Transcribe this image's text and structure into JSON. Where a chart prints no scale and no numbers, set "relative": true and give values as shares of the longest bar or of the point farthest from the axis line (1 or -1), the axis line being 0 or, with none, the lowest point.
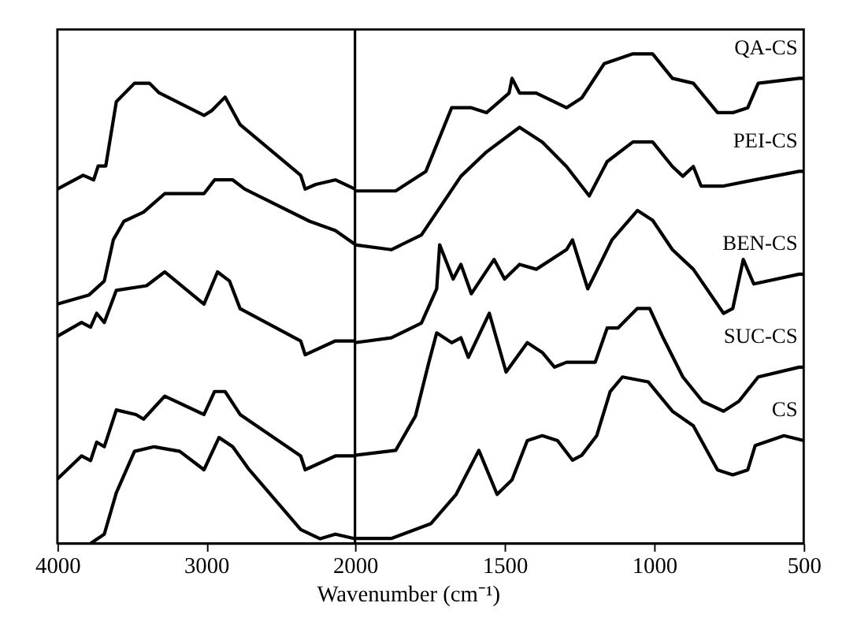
{
  "chart_data": [
    {
      "type": "line",
      "relative": true,
      "xlabel": "Wavenumber (cm⁻¹)",
      "xlim": [
        4000,
        2000
      ],
      "xticks": [
        4000,
        3000,
        2000
      ],
      "tick_labels": "x",
      "grid": false,
      "legend": false,
      "marker": "none",
      "line_style": "solid",
      "series": [
        {
          "color": "#000000",
          "x": [
            4000,
            3827,
            3756,
            3726,
            3675,
            3604,
            3482,
            3381,
            3320,
            3015,
            2965,
            2873,
            2772,
            2365,
            2335,
            2264,
            2132,
            2000
          ],
          "values": [
            0.77,
            0.8,
            0.79,
            0.82,
            0.82,
            0.96,
            1.0,
            1.0,
            0.98,
            0.93,
            0.94,
            0.97,
            0.91,
            0.8,
            0.77,
            0.78,
            0.79,
            0.77
          ]
        },
        {
          "color": "#000000",
          "x": [
            4000,
            3787,
            3685,
            3624,
            3553,
            3421,
            3279,
            3015,
            2944,
            2822,
            2741,
            2305,
            2132,
            2000
          ],
          "values": [
            0.52,
            0.54,
            0.57,
            0.66,
            0.7,
            0.72,
            0.76,
            0.76,
            0.79,
            0.79,
            0.77,
            0.7,
            0.68,
            0.65
          ]
        },
        {
          "color": "#000000",
          "x": [
            4000,
            3838,
            3777,
            3736,
            3685,
            3604,
            3401,
            3279,
            3015,
            2924,
            2843,
            2772,
            2365,
            2335,
            2132,
            2000
          ],
          "values": [
            0.45,
            0.48,
            0.47,
            0.5,
            0.48,
            0.55,
            0.56,
            0.59,
            0.52,
            0.59,
            0.57,
            0.51,
            0.44,
            0.41,
            0.44,
            0.44
          ]
        },
        {
          "color": "#000000",
          "x": [
            4000,
            3838,
            3777,
            3736,
            3685,
            3604,
            3472,
            3421,
            3279,
            3015,
            2944,
            2873,
            2772,
            2365,
            2335,
            2132,
            2000
          ],
          "values": [
            0.14,
            0.19,
            0.18,
            0.22,
            0.21,
            0.29,
            0.28,
            0.27,
            0.32,
            0.28,
            0.33,
            0.33,
            0.28,
            0.19,
            0.16,
            0.19,
            0.19
          ]
        },
        {
          "color": "#000000",
          "x": [
            3777,
            3685,
            3604,
            3482,
            3350,
            3178,
            3015,
            2914,
            2822,
            2711,
            2365,
            2234,
            2132,
            2000
          ],
          "values": [
            0.0,
            0.02,
            0.11,
            0.2,
            0.21,
            0.2,
            0.16,
            0.23,
            0.21,
            0.16,
            0.03,
            0.01,
            0.02,
            0.01
          ]
        }
      ]
    },
    {
      "type": "line",
      "relative": true,
      "xlim": [
        2000,
        500
      ],
      "xticks": [
        1500,
        1000,
        500
      ],
      "tick_labels": "x",
      "grid": false,
      "legend": false,
      "marker": "none",
      "line_style": "solid",
      "series": [
        {
          "name": "QA-CS",
          "color": "#000000",
          "x": [
            2000,
            1864,
            1763,
            1677,
            1611,
            1560,
            1485,
            1475,
            1450,
            1394,
            1293,
            1242,
            1167,
            1071,
            1005,
            939,
            869,
            788,
            737,
            687,
            652,
            515,
            500
          ],
          "values": [
            0.72,
            0.72,
            0.76,
            0.89,
            0.89,
            0.88,
            0.92,
            0.95,
            0.92,
            0.92,
            0.89,
            0.91,
            0.98,
            1.0,
            1.0,
            0.95,
            0.94,
            0.88,
            0.88,
            0.89,
            0.94,
            0.95,
            0.95
          ]
        },
        {
          "name": "PEI-CS",
          "color": "#000000",
          "x": [
            2000,
            1879,
            1778,
            1646,
            1560,
            1450,
            1374,
            1293,
            1217,
            1157,
            1071,
            1005,
            939,
            904,
            869,
            843,
            768,
            687,
            515,
            500
          ],
          "values": [
            0.61,
            0.6,
            0.63,
            0.75,
            0.8,
            0.85,
            0.82,
            0.77,
            0.71,
            0.78,
            0.82,
            0.82,
            0.77,
            0.75,
            0.77,
            0.73,
            0.73,
            0.74,
            0.76,
            0.76
          ]
        },
        {
          "name": "BEN-CS",
          "color": "#000000",
          "x": [
            2000,
            1879,
            1778,
            1727,
            1717,
            1672,
            1646,
            1611,
            1535,
            1500,
            1450,
            1394,
            1293,
            1273,
            1222,
            1141,
            1056,
            1005,
            939,
            869,
            768,
            737,
            702,
            667,
            515,
            500
          ],
          "values": [
            0.41,
            0.42,
            0.45,
            0.52,
            0.61,
            0.54,
            0.57,
            0.51,
            0.58,
            0.54,
            0.57,
            0.56,
            0.6,
            0.62,
            0.52,
            0.62,
            0.68,
            0.66,
            0.6,
            0.56,
            0.47,
            0.48,
            0.58,
            0.53,
            0.55,
            0.55
          ]
        },
        {
          "name": "SUC-CS",
          "color": "#000000",
          "x": [
            2000,
            1864,
            1798,
            1753,
            1727,
            1677,
            1646,
            1621,
            1551,
            1495,
            1424,
            1374,
            1333,
            1293,
            1197,
            1157,
            1121,
            1056,
            1015,
            970,
            904,
            838,
            768,
            717,
            652,
            515,
            500
          ],
          "values": [
            0.18,
            0.19,
            0.26,
            0.37,
            0.43,
            0.41,
            0.42,
            0.38,
            0.47,
            0.35,
            0.41,
            0.39,
            0.36,
            0.37,
            0.37,
            0.44,
            0.44,
            0.48,
            0.48,
            0.42,
            0.34,
            0.29,
            0.27,
            0.29,
            0.34,
            0.36,
            0.36
          ]
        },
        {
          "name": "CS",
          "color": "#000000",
          "x": [
            2000,
            1879,
            1747,
            1662,
            1586,
            1525,
            1475,
            1424,
            1374,
            1323,
            1273,
            1242,
            1192,
            1147,
            1106,
            1020,
            939,
            869,
            788,
            737,
            687,
            662,
            566,
            500
          ],
          "values": [
            0.01,
            0.01,
            0.04,
            0.1,
            0.19,
            0.1,
            0.13,
            0.21,
            0.22,
            0.21,
            0.17,
            0.18,
            0.22,
            0.31,
            0.34,
            0.33,
            0.27,
            0.24,
            0.15,
            0.14,
            0.15,
            0.2,
            0.22,
            0.21
          ]
        }
      ]
    }
  ]
}
